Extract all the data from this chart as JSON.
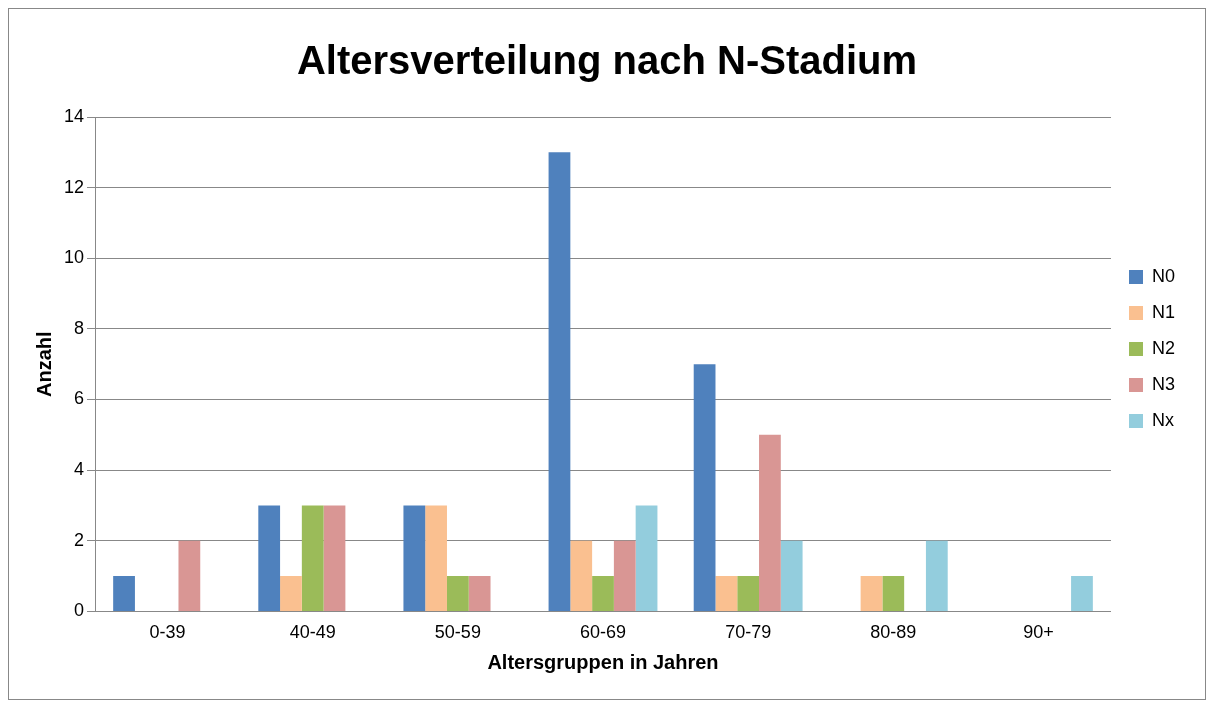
{
  "chart_data": {
    "type": "bar",
    "title": "Altersverteilung nach N-Stadium",
    "xlabel": "Altersgruppen in Jahren",
    "ylabel": "Anzahl",
    "categories": [
      "0-39",
      "40-49",
      "50-59",
      "60-69",
      "70-79",
      "80-89",
      "90+"
    ],
    "series": [
      {
        "name": "N0",
        "color": "#4f81bd",
        "values": [
          1,
          3,
          3,
          13,
          7,
          0,
          0
        ]
      },
      {
        "name": "N1",
        "color": "#fac090",
        "values": [
          0,
          1,
          3,
          2,
          1,
          1,
          0
        ]
      },
      {
        "name": "N2",
        "color": "#9bbb59",
        "values": [
          0,
          3,
          1,
          1,
          1,
          1,
          0
        ]
      },
      {
        "name": "N3",
        "color": "#d99694",
        "values": [
          2,
          3,
          1,
          2,
          5,
          0,
          0
        ]
      },
      {
        "name": "Nx",
        "color": "#93cddd",
        "values": [
          0,
          0,
          0,
          3,
          2,
          2,
          1
        ]
      }
    ],
    "ylim": [
      0,
      14
    ],
    "yticks": [
      0,
      2,
      4,
      6,
      8,
      10,
      12,
      14
    ],
    "grid": "y",
    "legend": "right"
  }
}
